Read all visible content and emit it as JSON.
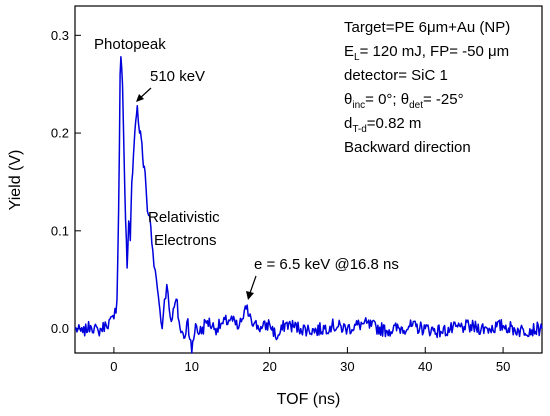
{
  "chart_data": {
    "type": "line",
    "xlabel": "TOF (ns)",
    "ylabel": "Yield (V)",
    "xlim": [
      -5,
      55
    ],
    "ylim": [
      -0.025,
      0.33
    ],
    "x_ticks": [
      0,
      10,
      20,
      30,
      40,
      50
    ],
    "y_ticks": [
      0.0,
      0.1,
      0.2,
      0.3
    ],
    "x_tick_labels": [
      "0",
      "10",
      "20",
      "30",
      "40",
      "50"
    ],
    "y_tick_labels": [
      "0.0",
      "0.1",
      "0.2",
      "0.3"
    ],
    "grid": false,
    "series": [
      {
        "color": "#0000dd",
        "points": [
          [
            -5.0,
            0.0
          ],
          [
            -4.0,
            -0.004
          ],
          [
            -3.0,
            0.003
          ],
          [
            -2.0,
            -0.003
          ],
          [
            -1.0,
            0.004
          ],
          [
            0.0,
            0.01
          ],
          [
            0.4,
            0.03
          ],
          [
            0.6,
            0.12
          ],
          [
            0.8,
            0.26
          ],
          [
            0.9,
            0.278
          ],
          [
            1.1,
            0.25
          ],
          [
            1.3,
            0.18
          ],
          [
            1.5,
            0.11
          ],
          [
            1.7,
            0.062
          ],
          [
            1.9,
            0.11
          ],
          [
            2.1,
            0.09
          ],
          [
            2.3,
            0.15
          ],
          [
            2.6,
            0.19
          ],
          [
            2.8,
            0.212
          ],
          [
            3.0,
            0.228
          ],
          [
            3.3,
            0.2
          ],
          [
            3.6,
            0.19
          ],
          [
            3.8,
            0.165
          ],
          [
            4.0,
            0.16
          ],
          [
            4.3,
            0.12
          ],
          [
            4.6,
            0.115
          ],
          [
            5.0,
            0.08
          ],
          [
            5.3,
            0.06
          ],
          [
            5.6,
            0.04
          ],
          [
            5.9,
            0.02
          ],
          [
            6.2,
            0.0
          ],
          [
            6.5,
            0.03
          ],
          [
            6.8,
            0.045
          ],
          [
            7.1,
            0.02
          ],
          [
            7.5,
            0.01
          ],
          [
            8.0,
            0.03
          ],
          [
            8.5,
            0.0
          ],
          [
            9.0,
            -0.01
          ],
          [
            9.5,
            0.01
          ],
          [
            10.0,
            -0.025
          ],
          [
            10.5,
            0.005
          ],
          [
            11.0,
            -0.005
          ],
          [
            12.0,
            0.008
          ],
          [
            13.0,
            0.0
          ],
          [
            14.0,
            0.005
          ],
          [
            15.0,
            0.01
          ],
          [
            16.0,
            0.0
          ],
          [
            16.5,
            0.01
          ],
          [
            17.0,
            0.02
          ],
          [
            17.5,
            0.015
          ],
          [
            18.0,
            0.005
          ],
          [
            19.0,
            0.0
          ],
          [
            20.0,
            0.005
          ],
          [
            21.0,
            -0.01
          ],
          [
            22.0,
            0.005
          ],
          [
            24.0,
            0.0
          ],
          [
            26.0,
            -0.002
          ],
          [
            28.0,
            0.003
          ],
          [
            30.0,
            0.0
          ],
          [
            32.0,
            0.005
          ],
          [
            35.0,
            -0.002
          ],
          [
            38.0,
            0.002
          ],
          [
            40.0,
            0.0
          ],
          [
            42.0,
            -0.003
          ],
          [
            45.0,
            0.002
          ],
          [
            48.0,
            0.0
          ],
          [
            50.0,
            0.003
          ],
          [
            52.0,
            -0.002
          ],
          [
            55.0,
            0.0
          ]
        ]
      }
    ],
    "annotations": [
      {
        "text": "Photopeak"
      },
      {
        "text": "510 keV"
      },
      {
        "text": "Relativistic"
      },
      {
        "text": "Electrons"
      },
      {
        "text": "e = 6.5 keV @16.8 ns"
      }
    ],
    "info_box": {
      "line1": "Target=PE 6μm+Au (NP)",
      "line2_pre": "E",
      "line2_sub": "L",
      "line2_post": "= 120 mJ, FP= -50 μm",
      "line3": "detector= SiC 1",
      "line4_a": "θ",
      "line4_a_sub": "inc",
      "line4_b": "= 0°; θ",
      "line4_b_sub": "det",
      "line4_c": "= -25°",
      "line5_pre": "d",
      "line5_sub": "T-d",
      "line5_post": "=0.82 m",
      "line6": "Backward direction"
    }
  }
}
